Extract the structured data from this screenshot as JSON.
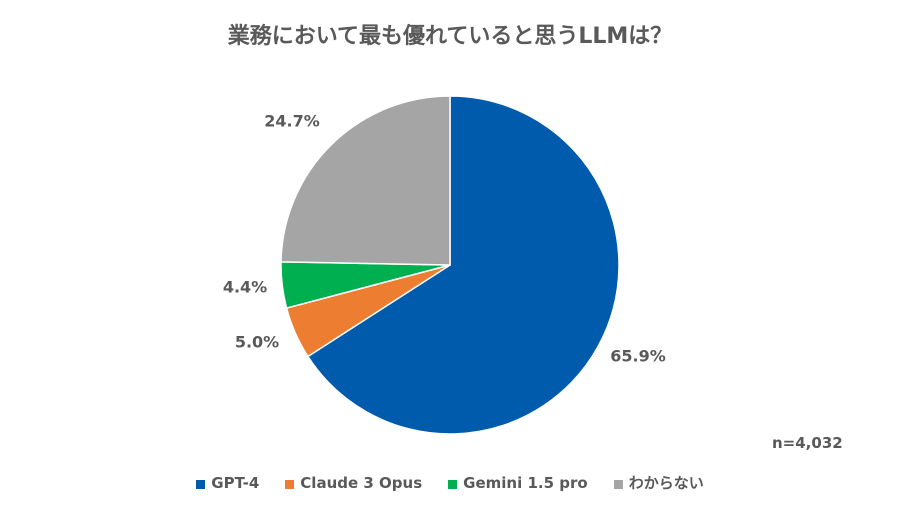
{
  "chart_data": {
    "type": "pie",
    "title": "業務において最も優れていると思うLLMは？",
    "categories": [
      "GPT-4",
      "Claude 3 Opus",
      "Gemini 1.5 pro",
      "わからない"
    ],
    "values": [
      65.9,
      5.0,
      4.4,
      24.7
    ],
    "labels": [
      "65.9%",
      "5.0%",
      "4.4%",
      "24.7%"
    ],
    "colors": [
      "#005BAC",
      "#ED7D31",
      "#00B050",
      "#A5A5A5"
    ],
    "legend_position": "bottom",
    "annotation": "n=4,032"
  }
}
